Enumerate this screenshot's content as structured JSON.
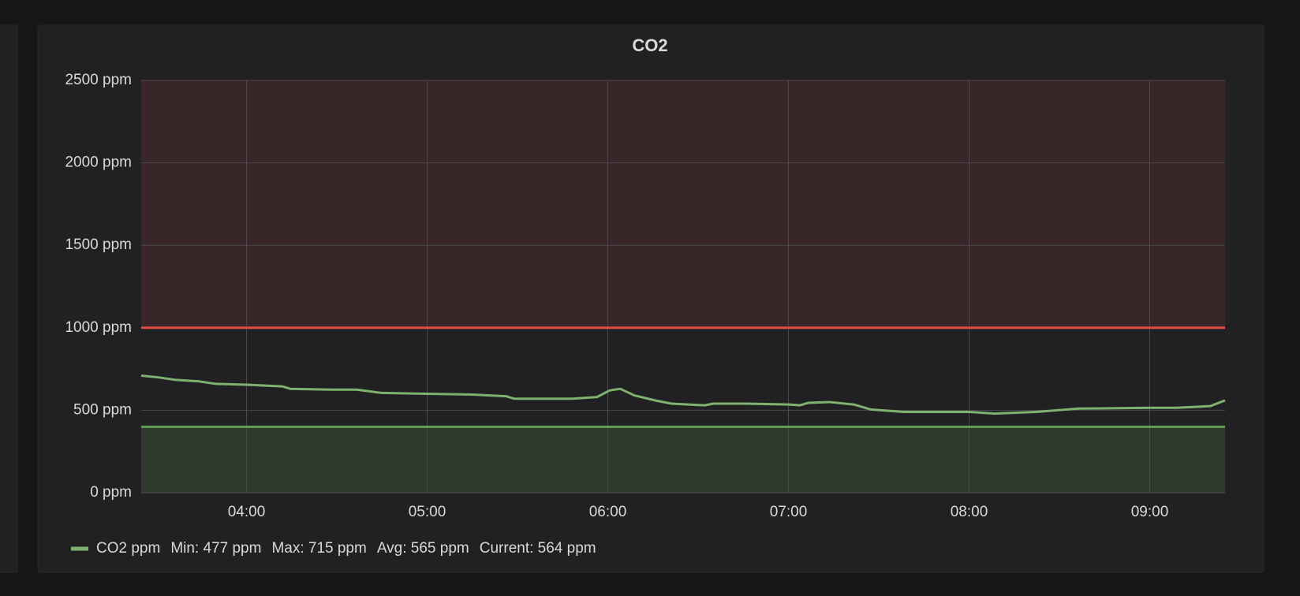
{
  "chart_data": {
    "type": "line",
    "title": "CO2",
    "x": [
      3.417,
      3.509,
      3.601,
      3.739,
      3.83,
      4.0,
      4.197,
      4.243,
      4.472,
      4.61,
      4.748,
      5.0,
      5.252,
      5.436,
      5.482,
      5.803,
      5.94,
      6.009,
      6.069,
      6.147,
      6.261,
      6.353,
      6.537,
      6.583,
      6.766,
      7.005,
      7.064,
      7.11,
      7.225,
      7.362,
      7.454,
      7.638,
      8.0,
      8.142,
      8.372,
      8.601,
      9.009,
      9.151,
      9.335,
      9.417
    ],
    "series": [
      {
        "name": "CO2 ppm",
        "color": "#7eb26d",
        "values": [
          710,
          700,
          685,
          675,
          660,
          655,
          645,
          630,
          625,
          625,
          605,
          600,
          595,
          585,
          570,
          570,
          580,
          620,
          630,
          590,
          560,
          540,
          530,
          540,
          540,
          535,
          530,
          545,
          550,
          535,
          505,
          490,
          490,
          480,
          490,
          510,
          515,
          515,
          525,
          560
        ]
      }
    ],
    "legend_stats": [
      "Min: 477 ppm",
      "Max: 715 ppm",
      "Avg: 565 ppm",
      "Current: 564 ppm"
    ],
    "xlim": [
      3.417,
      9.417
    ],
    "xticks": [
      {
        "value": 4,
        "label": "04:00"
      },
      {
        "value": 5,
        "label": "05:00"
      },
      {
        "value": 6,
        "label": "06:00"
      },
      {
        "value": 7,
        "label": "07:00"
      },
      {
        "value": 8,
        "label": "08:00"
      },
      {
        "value": 9,
        "label": "09:00"
      }
    ],
    "ylim": [
      0,
      2500
    ],
    "yticks": [
      {
        "value": 0,
        "label": "0 ppm"
      },
      {
        "value": 500,
        "label": "500 ppm"
      },
      {
        "value": 1000,
        "label": "1000 ppm"
      },
      {
        "value": 1500,
        "label": "1500 ppm"
      },
      {
        "value": 2000,
        "label": "2000 ppm"
      },
      {
        "value": 2500,
        "label": "2500 ppm"
      }
    ],
    "grid": true,
    "thresholds": [
      {
        "value": 1000,
        "op": "gt",
        "color": "#e24d42"
      },
      {
        "value": 400,
        "op": "lt",
        "color": "#629e51"
      }
    ]
  }
}
